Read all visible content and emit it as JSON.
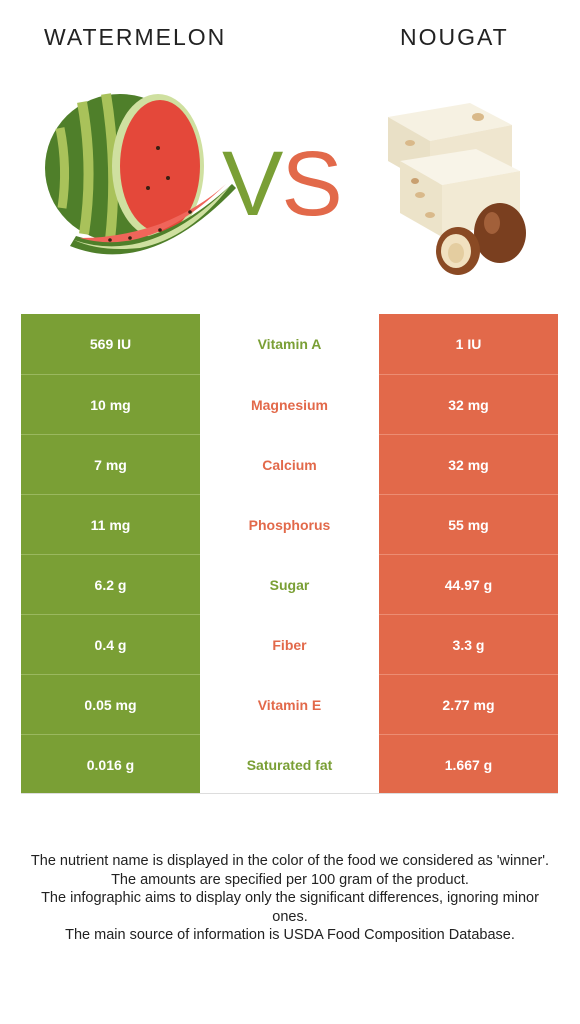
{
  "header": {
    "left_food": "WATERMELON",
    "right_food": "NOUGAT",
    "vs_v": "V",
    "vs_s": "S"
  },
  "colors": {
    "watermelon_green": "#7a9f35",
    "nougat_orange": "#e2694a"
  },
  "rows": [
    {
      "left": "569 IU",
      "nutrient": "Vitamin A",
      "right": "1 IU",
      "winner": "left"
    },
    {
      "left": "10 mg",
      "nutrient": "Magnesium",
      "right": "32 mg",
      "winner": "right"
    },
    {
      "left": "7 mg",
      "nutrient": "Calcium",
      "right": "32 mg",
      "winner": "right"
    },
    {
      "left": "11 mg",
      "nutrient": "Phosphorus",
      "right": "55 mg",
      "winner": "right"
    },
    {
      "left": "6.2 g",
      "nutrient": "Sugar",
      "right": "44.97 g",
      "winner": "left"
    },
    {
      "left": "0.4 g",
      "nutrient": "Fiber",
      "right": "3.3 g",
      "winner": "right"
    },
    {
      "left": "0.05 mg",
      "nutrient": "Vitamin E",
      "right": "2.77 mg",
      "winner": "right"
    },
    {
      "left": "0.016 g",
      "nutrient": "Saturated fat",
      "right": "1.667 g",
      "winner": "left"
    }
  ],
  "notes": [
    "The nutrient name is displayed in the color of the food we considered as 'winner'.",
    "The amounts are specified per 100 gram of the product.",
    "The infographic aims to display only the significant differences, ignoring minor ones.",
    "The main source of information is USDA Food Composition Database."
  ]
}
